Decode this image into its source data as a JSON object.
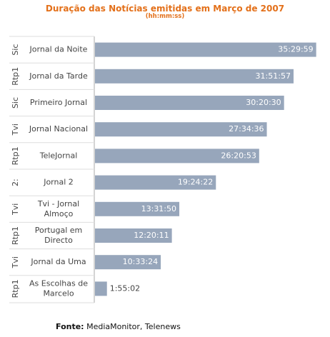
{
  "title": "Duração das Notícias emitidas em Março de 2007",
  "subtitle": "(hh:mm:ss)",
  "source": {
    "label": "Fonte:",
    "text": "MediaMonitor, Telenews"
  },
  "colors": {
    "bar": "#97a6bb",
    "title": "#e3701a",
    "axis": "#aaaaaa",
    "label": "#444444",
    "value_inside": "#ffffff",
    "value_outside": "#444444"
  },
  "chart_data": {
    "type": "bar",
    "orientation": "horizontal",
    "title": "Duração das Notícias emitidas em Março de 2007",
    "subtitle": "(hh:mm:ss)",
    "xlabel": "",
    "ylabel": "",
    "xlim_seconds": [
      0,
      130000
    ],
    "grid": false,
    "legend": "none",
    "categories": [
      {
        "channel": "Sic",
        "program": [
          "Jornal da Noite"
        ],
        "value": "35:29:59",
        "seconds": 127799
      },
      {
        "channel": "Rtp1",
        "program": [
          "Jornal da Tarde"
        ],
        "value": "31:51:57",
        "seconds": 114717
      },
      {
        "channel": "Sic",
        "program": [
          "Primeiro Jornal"
        ],
        "value": "30:20:30",
        "seconds": 109230
      },
      {
        "channel": "Tvi",
        "program": [
          "Jornal Nacional"
        ],
        "value": "27:34:36",
        "seconds": 99276
      },
      {
        "channel": "Rtp1",
        "program": [
          "TeleJornal"
        ],
        "value": "26:20:53",
        "seconds": 94853
      },
      {
        "channel": "2:",
        "program": [
          "Jornal 2"
        ],
        "value": "19:24:22",
        "seconds": 69862
      },
      {
        "channel": "Tvi",
        "program": [
          "Tvi - Jornal",
          "Almoço"
        ],
        "value": "13:31:50",
        "seconds": 48710
      },
      {
        "channel": "Rtp1",
        "program": [
          "Portugal em",
          "Directo"
        ],
        "value": "12:20:11",
        "seconds": 44411
      },
      {
        "channel": "Tvi",
        "program": [
          "Jornal da Uma"
        ],
        "value": "10:33:24",
        "seconds": 38004
      },
      {
        "channel": "Rtp1",
        "program": [
          "As Escolhas de",
          "Marcelo"
        ],
        "value": "1:55:02",
        "seconds": 6902
      }
    ]
  }
}
